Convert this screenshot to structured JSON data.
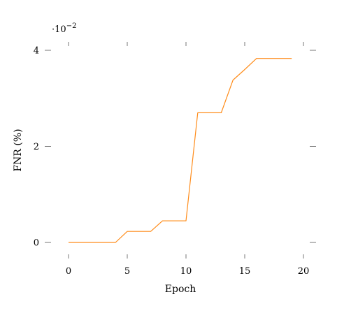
{
  "chart_data": {
    "type": "line",
    "xlabel": "Epoch",
    "ylabel": "FNR (%)",
    "y_scale_label": "·10",
    "y_scale_exponent": "−2",
    "xlim": [
      -1,
      20.5
    ],
    "ylim": [
      -0.003,
      0.04
    ],
    "x_ticks": [
      0,
      5,
      10,
      15,
      20
    ],
    "x_tick_labels": [
      "0",
      "5",
      "10",
      "15",
      "20"
    ],
    "y_ticks": [
      0,
      0.02,
      0.04
    ],
    "y_tick_labels": [
      "0",
      "2",
      "4"
    ],
    "grid": false,
    "legend": false,
    "series": [
      {
        "color": "#ff8c1a",
        "x": [
          0,
          1,
          2,
          3,
          4,
          5,
          6,
          7,
          8,
          9,
          10,
          11,
          12,
          13,
          14,
          15,
          16,
          17,
          18,
          19
        ],
        "y": [
          0,
          0,
          0,
          0,
          0,
          0.0023,
          0.0023,
          0.0023,
          0.0045,
          0.0045,
          0.0045,
          0.027,
          0.027,
          0.027,
          0.0338,
          0.036,
          0.0383,
          0.0383,
          0.0383,
          0.0383
        ]
      }
    ]
  }
}
